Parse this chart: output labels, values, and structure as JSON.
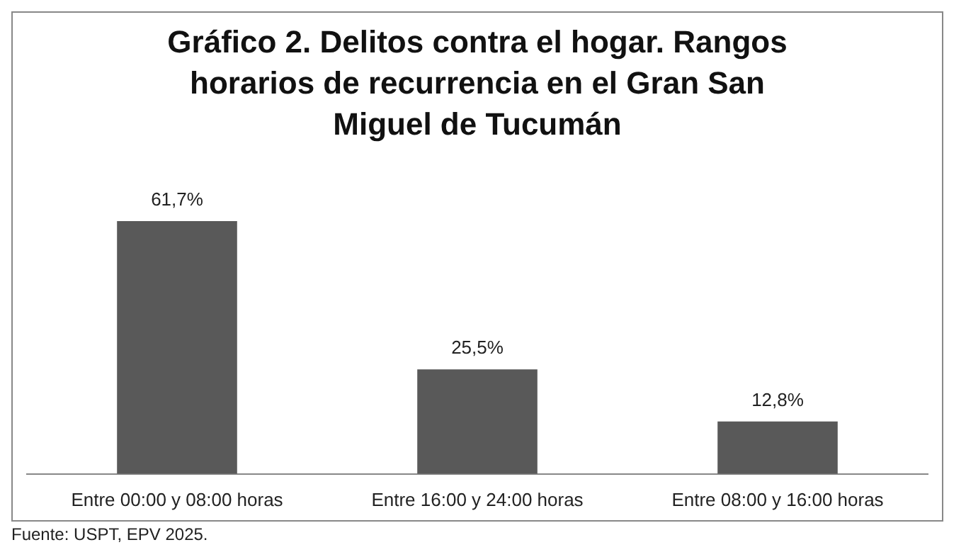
{
  "chart_data": {
    "type": "bar",
    "title": "Gráfico 2. Delitos contra el hogar. Rangos horarios de recurrencia en el Gran San Miguel de Tucumán",
    "categories": [
      "Entre 00:00 y 08:00 horas",
      "Entre 16:00 y 24:00 horas",
      "Entre 08:00 y 16:00 horas"
    ],
    "values": [
      61.7,
      25.5,
      12.8
    ],
    "value_labels": [
      "61,7%",
      "25,5%",
      "12,8%"
    ],
    "color": "#595959",
    "grid": false,
    "legend": false,
    "annotations": [
      "Fuente: USPT, EPV 2025."
    ]
  }
}
